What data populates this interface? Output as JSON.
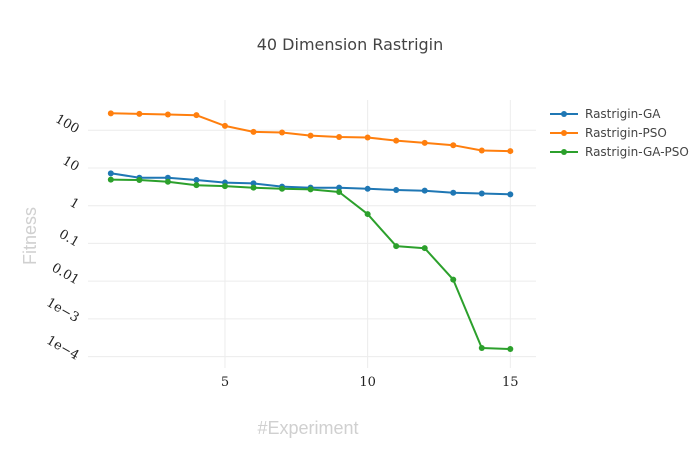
{
  "chart_data": {
    "type": "line",
    "title": "40 Dimension Rastrigin",
    "xlabel": "#Experiment",
    "ylabel": "Fitness",
    "yscale": "log",
    "xlim": [
      0.2,
      15.9
    ],
    "ylim_log10": [
      -4.3,
      2.8
    ],
    "grid": true,
    "legend_position": "top-right",
    "x_ticks": [
      5,
      10,
      15
    ],
    "y_ticks": [
      {
        "value": 100,
        "label": "100"
      },
      {
        "value": 10,
        "label": "10"
      },
      {
        "value": 1,
        "label": "1"
      },
      {
        "value": 0.1,
        "label": "0.1"
      },
      {
        "value": 0.01,
        "label": "0.01"
      },
      {
        "value": 0.001,
        "label": "1e−3"
      },
      {
        "value": 0.0001,
        "label": "1e−4"
      }
    ],
    "x": [
      1,
      2,
      3,
      4,
      5,
      6,
      7,
      8,
      9,
      10,
      11,
      12,
      13,
      14,
      15
    ],
    "series": [
      {
        "name": "Rastrigin-GA",
        "color": "#1f77b4",
        "values": [
          7.2,
          5.5,
          5.5,
          4.8,
          4.1,
          3.9,
          3.2,
          3.0,
          3.0,
          2.8,
          2.6,
          2.5,
          2.2,
          2.1,
          2.0
        ]
      },
      {
        "name": "Rastrigin-PSO",
        "color": "#ff7f0e",
        "values": [
          280,
          270,
          260,
          250,
          130,
          90,
          87,
          72,
          66,
          64,
          53,
          46,
          40,
          29,
          28
        ]
      },
      {
        "name": "Rastrigin-GA-PSO",
        "color": "#2ca02c",
        "values": [
          4.9,
          4.8,
          4.3,
          3.5,
          3.3,
          3.0,
          2.8,
          2.7,
          2.3,
          0.6,
          0.085,
          0.075,
          0.011,
          0.00017,
          0.00016
        ]
      }
    ]
  }
}
